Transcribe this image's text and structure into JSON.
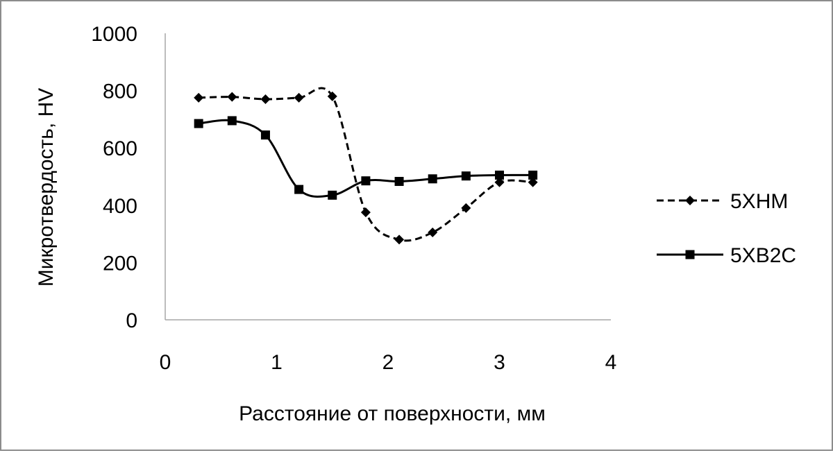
{
  "chart_data": {
    "type": "scatter",
    "title": "",
    "xlabel": "Расстояние от поверхности, мм",
    "ylabel": "Микротвердость, HV",
    "xlim": [
      0,
      4
    ],
    "ylim": [
      0,
      1000
    ],
    "xticks": [
      "0",
      "1",
      "2",
      "3",
      "4"
    ],
    "yticks": [
      "0",
      "200",
      "400",
      "600",
      "800",
      "1000"
    ],
    "grid": false,
    "legend_position": "right",
    "smooth_lines": true,
    "series": [
      {
        "name": "5ХНМ",
        "marker": "diamond",
        "line_style": "dashed",
        "color": "#000000",
        "x": [
          0.3,
          0.6,
          0.9,
          1.2,
          1.5,
          1.8,
          2.1,
          2.4,
          2.7,
          3.0,
          3.3
        ],
        "y": [
          775,
          778,
          770,
          775,
          780,
          375,
          280,
          305,
          390,
          480,
          480
        ]
      },
      {
        "name": "5ХВ2С",
        "marker": "square",
        "line_style": "solid",
        "color": "#000000",
        "x": [
          0.3,
          0.6,
          0.9,
          1.2,
          1.5,
          1.8,
          2.1,
          2.4,
          2.7,
          3.0,
          3.3
        ],
        "y": [
          685,
          695,
          645,
          455,
          435,
          485,
          483,
          492,
          502,
          505,
          505
        ]
      }
    ]
  }
}
